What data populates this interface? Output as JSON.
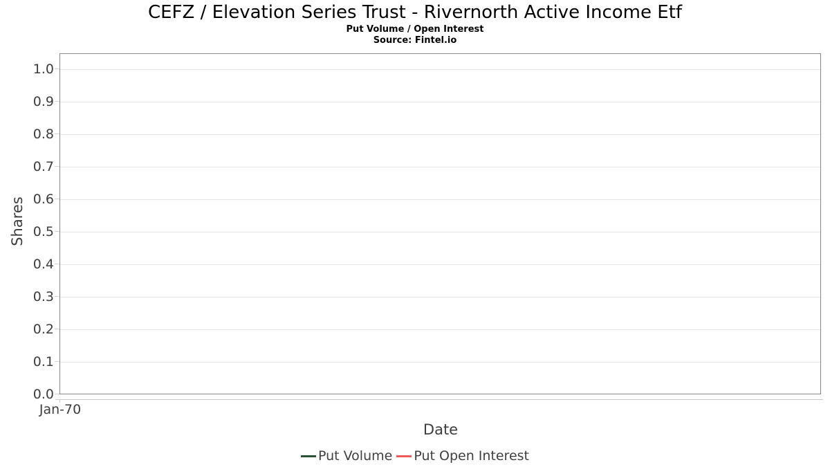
{
  "chart": {
    "title": "CEFZ / Elevation Series Trust - Rivernorth Active Income Etf",
    "subtitle": "Put Volume / Open Interest",
    "source": "Source: Fintel.io"
  },
  "chart_data": {
    "type": "line",
    "title": "CEFZ / Elevation Series Trust - Rivernorth Active Income Etf",
    "subtitle": "Put Volume / Open Interest",
    "source": "Source: Fintel.io",
    "xlabel": "Date",
    "ylabel": "Shares",
    "x": [
      "Jan-70"
    ],
    "xticks": [
      "Jan-70"
    ],
    "yticks": [
      "0.0",
      "0.1",
      "0.2",
      "0.3",
      "0.4",
      "0.5",
      "0.6",
      "0.7",
      "0.8",
      "0.9",
      "1.0"
    ],
    "ylim": [
      0,
      1.05
    ],
    "grid": true,
    "legend_position": "bottom",
    "series": [
      {
        "name": "Put Volume",
        "color": "#2b5134",
        "values": []
      },
      {
        "name": "Put Open Interest",
        "color": "#f15a5a",
        "values": []
      }
    ]
  },
  "colors": {
    "put_volume": "#2b5134",
    "put_open_interest": "#f15a5a",
    "plot_border": "#878787",
    "gridline": "#e6e6e6",
    "axis_line": "#c9c9c9",
    "text": "#3d3d3d",
    "title_text": "#000000"
  }
}
